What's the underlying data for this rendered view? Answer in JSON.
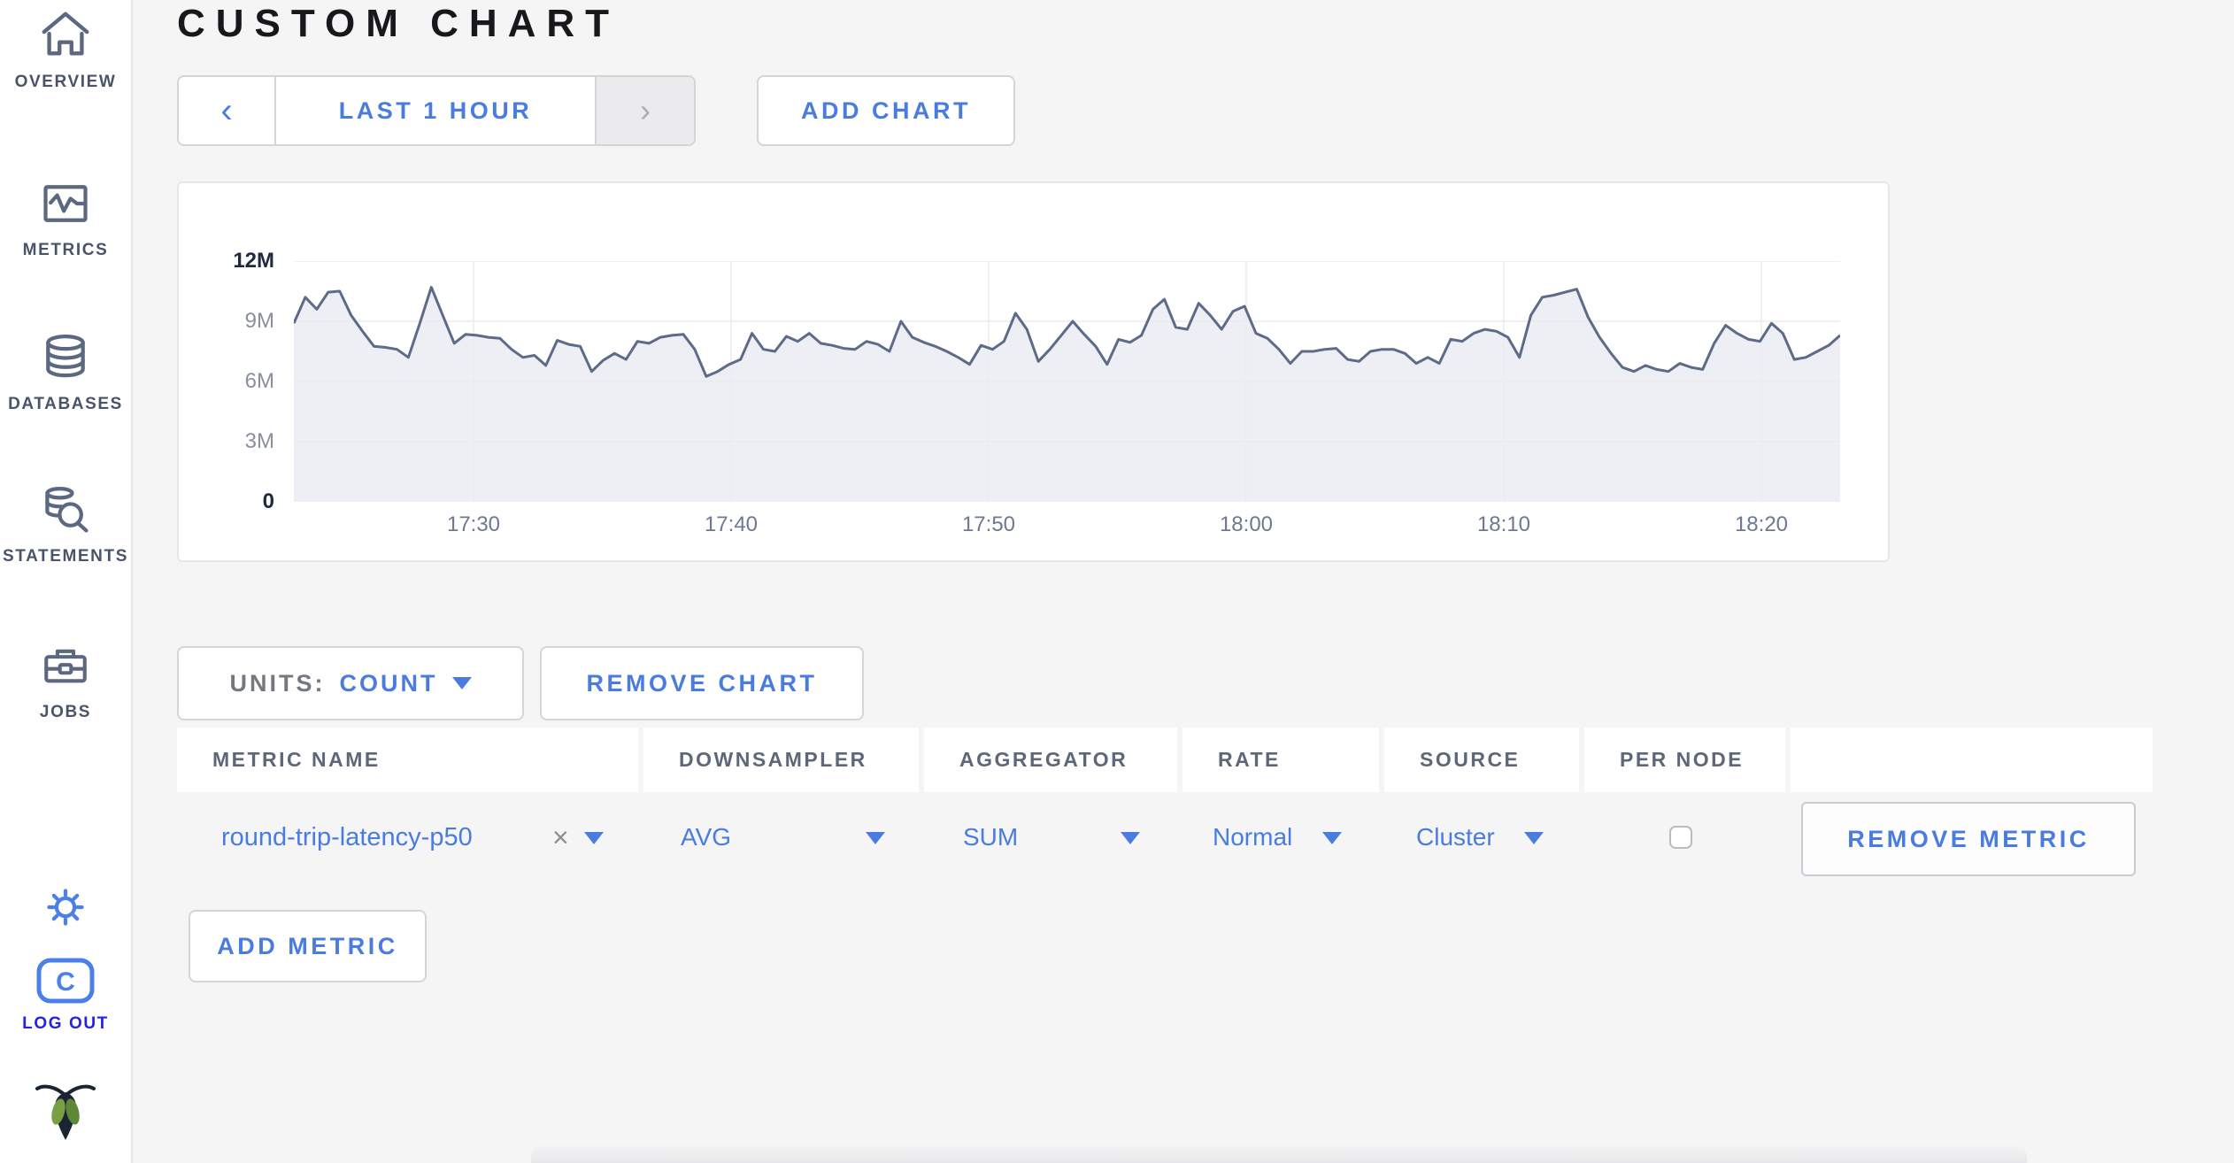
{
  "page_title": "CUSTOM CHART",
  "sidebar": {
    "items": [
      {
        "label": "OVERVIEW",
        "icon": "home-icon"
      },
      {
        "label": "METRICS",
        "icon": "metrics-graph-icon"
      },
      {
        "label": "DATABASES",
        "icon": "database-icon"
      },
      {
        "label": "STATEMENTS",
        "icon": "database-search-icon"
      },
      {
        "label": "JOBS",
        "icon": "briefcase-icon"
      }
    ],
    "settings_icon": "gear-icon",
    "logout": {
      "label": "LOG OUT",
      "icon": "cockroach-c-logo-icon"
    },
    "brand_icon": "cockroach-bug-logo-icon"
  },
  "toolbar": {
    "time_range": "LAST 1 HOUR",
    "add_chart_label": "ADD CHART"
  },
  "icons": {
    "chevron_left": "‹",
    "chevron_right": "›",
    "caret_down": "▾",
    "clear_x": "×"
  },
  "chart_controls": {
    "units_label": "UNITS:",
    "units_value": "COUNT",
    "remove_chart_label": "REMOVE CHART",
    "add_metric_label": "ADD METRIC"
  },
  "metrics_table": {
    "columns": [
      "METRIC NAME",
      "DOWNSAMPLER",
      "AGGREGATOR",
      "RATE",
      "SOURCE",
      "PER NODE",
      ""
    ],
    "rows": [
      {
        "metric_name": "round-trip-latency-p50",
        "downsampler": "AVG",
        "aggregator": "SUM",
        "rate": "Normal",
        "source": "Cluster",
        "per_node_checked": false,
        "remove_label": "REMOVE METRIC"
      }
    ]
  },
  "chart_data": {
    "type": "area",
    "title": "",
    "xlabel": "",
    "ylabel": "",
    "x_tick_labels": [
      "17:30",
      "17:40",
      "17:50",
      "18:00",
      "18:10",
      "18:20"
    ],
    "x_range_minutes": 60,
    "yticks": [
      {
        "label": "0",
        "value": 0
      },
      {
        "label": "3M",
        "value": 3
      },
      {
        "label": "6M",
        "value": 6
      },
      {
        "label": "9M",
        "value": 9
      },
      {
        "label": "12M",
        "value": 12
      }
    ],
    "ymax_millions": 12,
    "grid": true,
    "legend": "none",
    "x_start_frac": 0.1162,
    "x_step_frac": 0.16657,
    "line_color": "#5d6b88",
    "area_fill": "#edeff4",
    "grid_color": "#ececee",
    "series": [
      {
        "name": "round-trip-latency-p50",
        "units": "count (millions)",
        "values_millions": [
          8.9,
          10.2,
          9.6,
          10.45,
          10.5,
          9.3,
          8.5,
          7.75,
          7.7,
          7.6,
          7.2,
          8.9,
          10.7,
          9.3,
          7.9,
          8.35,
          8.3,
          8.2,
          8.15,
          7.6,
          7.2,
          7.3,
          6.8,
          8.05,
          7.85,
          7.75,
          6.5,
          7.05,
          7.4,
          7.1,
          8.0,
          7.9,
          8.2,
          8.3,
          8.35,
          7.6,
          6.25,
          6.5,
          6.85,
          7.1,
          8.4,
          7.6,
          7.5,
          8.25,
          8.0,
          8.4,
          7.9,
          7.8,
          7.65,
          7.6,
          8.0,
          7.85,
          7.5,
          9.0,
          8.2,
          7.95,
          7.75,
          7.5,
          7.2,
          6.85,
          7.8,
          7.6,
          8.0,
          9.4,
          8.6,
          7.0,
          7.6,
          8.3,
          9.0,
          8.35,
          7.75,
          6.85,
          8.1,
          7.95,
          8.3,
          9.6,
          10.1,
          8.7,
          8.6,
          9.9,
          9.3,
          8.6,
          9.5,
          9.75,
          8.4,
          8.15,
          7.6,
          6.9,
          7.5,
          7.5,
          7.6,
          7.65,
          7.1,
          7.0,
          7.5,
          7.6,
          7.6,
          7.4,
          6.9,
          7.2,
          6.9,
          8.1,
          8.0,
          8.4,
          8.6,
          8.5,
          8.2,
          7.2,
          9.3,
          10.2,
          10.3,
          10.45,
          10.6,
          9.2,
          8.2,
          7.4,
          6.7,
          6.5,
          6.8,
          6.6,
          6.5,
          6.9,
          6.7,
          6.6,
          7.9,
          8.8,
          8.4,
          8.1,
          8.0,
          8.9,
          8.4,
          7.1,
          7.2,
          7.5,
          7.8,
          8.3
        ]
      }
    ]
  },
  "colors": {
    "accent_blue": "#4a7ce0",
    "logout_blue": "#2424e0",
    "sidebar_slate": "#4a5468",
    "page_background": "#f5f5f6",
    "panel_background": "#ffffff",
    "chart_line": "#5d6b88",
    "chart_fill": "#edeff4"
  }
}
